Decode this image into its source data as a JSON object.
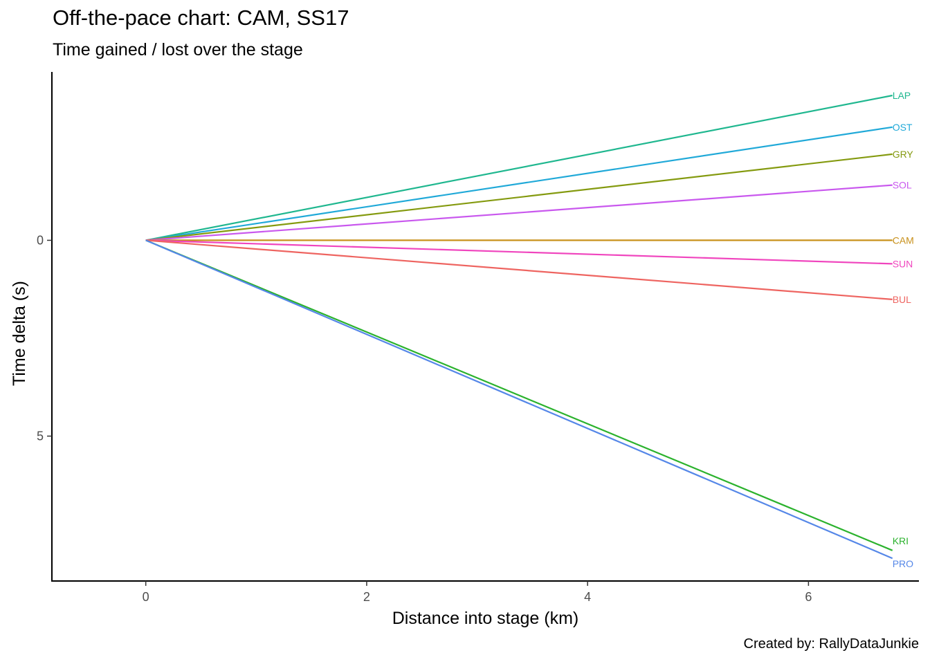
{
  "chart_data": {
    "type": "line",
    "title": "Off-the-pace chart: CAM, SS17",
    "subtitle": "Time gained / lost over the stage",
    "caption": "Created by: RallyDataJunkie",
    "xlabel": "Distance into stage (km)",
    "ylabel": "Time delta (s)",
    "xlim": [
      -0.85,
      7.0
    ],
    "ylim": [
      -4.3,
      8.7
    ],
    "y_reversed": true,
    "x_ticks": [
      0,
      2,
      4,
      6
    ],
    "y_ticks": [
      0,
      5
    ],
    "grid": false,
    "legend": "none (direct labels at line ends)",
    "series": [
      {
        "name": "LAP",
        "color": "#1FB78F",
        "x": [
          0,
          6.76
        ],
        "y": [
          0,
          -3.7
        ]
      },
      {
        "name": "OST",
        "color": "#20A9D8",
        "x": [
          0,
          6.76
        ],
        "y": [
          0,
          -2.89
        ]
      },
      {
        "name": "GRY",
        "color": "#849A0F",
        "x": [
          0,
          6.76
        ],
        "y": [
          0,
          -2.2
        ]
      },
      {
        "name": "SOL",
        "color": "#C958EE",
        "x": [
          0,
          6.76
        ],
        "y": [
          0,
          -1.41
        ]
      },
      {
        "name": "CAM",
        "color": "#C8901A",
        "x": [
          0,
          6.76
        ],
        "y": [
          0,
          0
        ]
      },
      {
        "name": "SUN",
        "color": "#F045BE",
        "x": [
          0,
          6.76
        ],
        "y": [
          0,
          0.6
        ]
      },
      {
        "name": "BUL",
        "color": "#EE6460",
        "x": [
          0,
          6.76
        ],
        "y": [
          0,
          1.51
        ]
      },
      {
        "name": "KRI",
        "color": "#2BB22D",
        "x": [
          0,
          6.76
        ],
        "y": [
          0,
          7.92
        ]
      },
      {
        "name": "PRO",
        "color": "#5587E8",
        "x": [
          0,
          6.76
        ],
        "y": [
          0,
          8.12
        ]
      }
    ]
  }
}
